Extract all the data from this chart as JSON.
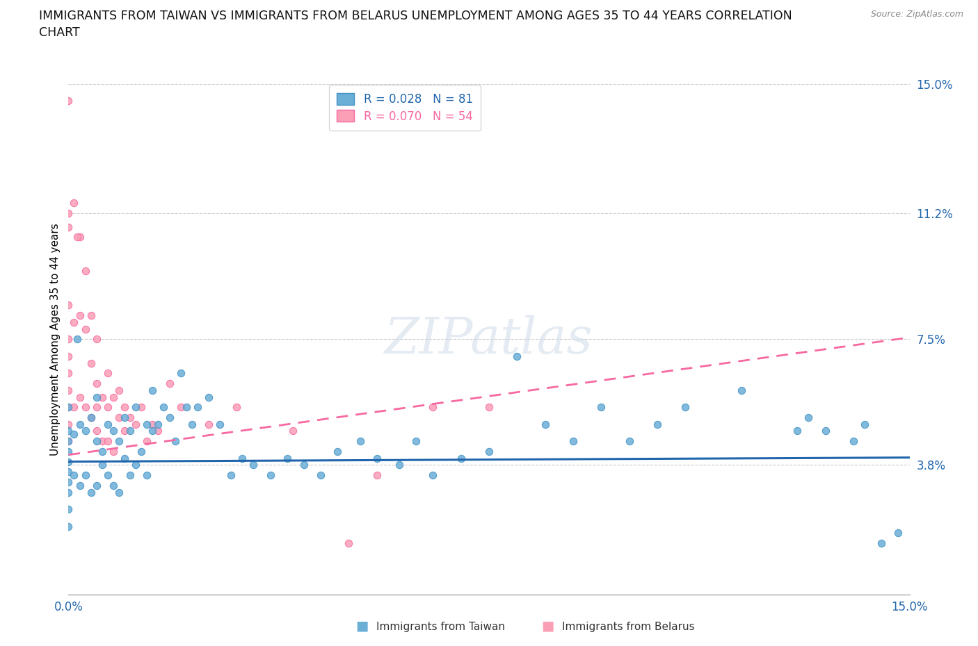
{
  "title": "IMMIGRANTS FROM TAIWAN VS IMMIGRANTS FROM BELARUS UNEMPLOYMENT AMONG AGES 35 TO 44 YEARS CORRELATION\nCHART",
  "source": "Source: ZipAtlas.com",
  "ylabel": "Unemployment Among Ages 35 to 44 years",
  "xlim": [
    0.0,
    15.0
  ],
  "ylim": [
    0.0,
    15.0
  ],
  "xtick_positions": [
    0.0,
    1.875,
    3.75,
    5.625,
    7.5,
    9.375,
    11.25,
    13.125,
    15.0
  ],
  "xtick_labels": [
    "0.0%",
    "",
    "",
    "",
    "",
    "",
    "",
    "",
    "15.0%"
  ],
  "ytick_vals": [
    0.0,
    3.8,
    7.5,
    11.2,
    15.0
  ],
  "ytick_labels": [
    "",
    "3.8%",
    "7.5%",
    "11.2%",
    "15.0%"
  ],
  "hgrid_vals": [
    3.8,
    7.5,
    11.2,
    15.0
  ],
  "taiwan_color": "#6baed6",
  "taiwan_edge": "#4292c6",
  "belarus_color": "#fa9fb5",
  "belarus_edge": "#f768a1",
  "taiwan_line_color": "#2166ac",
  "belarus_line_color": "#f768a1",
  "taiwan_R": 0.028,
  "taiwan_N": 81,
  "belarus_R": 0.07,
  "belarus_N": 54,
  "taiwan_trend_slope": 0.008,
  "taiwan_trend_intercept": 3.9,
  "belarus_trend_slope": 0.23,
  "belarus_trend_intercept": 4.1,
  "taiwan_scatter_x": [
    0.0,
    0.0,
    0.0,
    0.0,
    0.0,
    0.0,
    0.0,
    0.0,
    0.0,
    0.0,
    0.1,
    0.1,
    0.2,
    0.2,
    0.3,
    0.3,
    0.4,
    0.4,
    0.5,
    0.5,
    0.5,
    0.6,
    0.6,
    0.7,
    0.7,
    0.8,
    0.8,
    0.9,
    0.9,
    1.0,
    1.0,
    1.1,
    1.1,
    1.2,
    1.2,
    1.3,
    1.4,
    1.4,
    1.5,
    1.5,
    1.6,
    1.7,
    1.8,
    1.9,
    2.0,
    2.1,
    2.2,
    2.3,
    2.5,
    2.7,
    2.9,
    3.1,
    3.3,
    3.6,
    3.9,
    4.2,
    4.5,
    4.8,
    5.2,
    5.5,
    5.9,
    6.2,
    6.5,
    7.0,
    7.5,
    8.0,
    8.5,
    9.0,
    9.5,
    10.0,
    10.5,
    11.0,
    12.0,
    13.0,
    13.2,
    13.5,
    14.0,
    14.2,
    14.5,
    14.8,
    0.15
  ],
  "taiwan_scatter_y": [
    5.5,
    4.8,
    4.5,
    4.2,
    3.9,
    3.6,
    3.3,
    3.0,
    2.5,
    2.0,
    4.7,
    3.5,
    5.0,
    3.2,
    4.8,
    3.5,
    5.2,
    3.0,
    4.5,
    5.8,
    3.2,
    4.2,
    3.8,
    5.0,
    3.5,
    4.8,
    3.2,
    4.5,
    3.0,
    5.2,
    4.0,
    4.8,
    3.5,
    5.5,
    3.8,
    4.2,
    5.0,
    3.5,
    4.8,
    6.0,
    5.0,
    5.5,
    5.2,
    4.5,
    6.5,
    5.5,
    5.0,
    5.5,
    5.8,
    5.0,
    3.5,
    4.0,
    3.8,
    3.5,
    4.0,
    3.8,
    3.5,
    4.2,
    4.5,
    4.0,
    3.8,
    4.5,
    3.5,
    4.0,
    4.2,
    7.0,
    5.0,
    4.5,
    5.5,
    4.5,
    5.0,
    5.5,
    6.0,
    4.8,
    5.2,
    4.8,
    4.5,
    5.0,
    1.5,
    1.8,
    7.5
  ],
  "belarus_scatter_x": [
    0.0,
    0.0,
    0.0,
    0.0,
    0.0,
    0.0,
    0.0,
    0.0,
    0.0,
    0.0,
    0.0,
    0.1,
    0.1,
    0.1,
    0.2,
    0.2,
    0.2,
    0.3,
    0.3,
    0.3,
    0.4,
    0.4,
    0.4,
    0.5,
    0.5,
    0.5,
    0.5,
    0.6,
    0.6,
    0.7,
    0.7,
    0.7,
    0.8,
    0.8,
    0.9,
    0.9,
    1.0,
    1.0,
    1.1,
    1.2,
    1.3,
    1.4,
    1.5,
    1.6,
    1.8,
    2.0,
    2.5,
    3.0,
    4.0,
    5.0,
    5.5,
    6.5,
    7.5,
    0.15
  ],
  "belarus_scatter_y": [
    14.5,
    11.2,
    10.8,
    8.5,
    7.5,
    7.0,
    6.5,
    6.0,
    5.5,
    5.0,
    4.5,
    11.5,
    8.0,
    5.5,
    10.5,
    8.2,
    5.8,
    9.5,
    7.8,
    5.5,
    8.2,
    6.8,
    5.2,
    7.5,
    6.2,
    5.5,
    4.8,
    5.8,
    4.5,
    6.5,
    5.5,
    4.5,
    5.8,
    4.2,
    6.0,
    5.2,
    5.5,
    4.8,
    5.2,
    5.0,
    5.5,
    4.5,
    5.0,
    4.8,
    6.2,
    5.5,
    5.0,
    5.5,
    4.8,
    1.5,
    3.5,
    5.5,
    5.5,
    10.5
  ]
}
